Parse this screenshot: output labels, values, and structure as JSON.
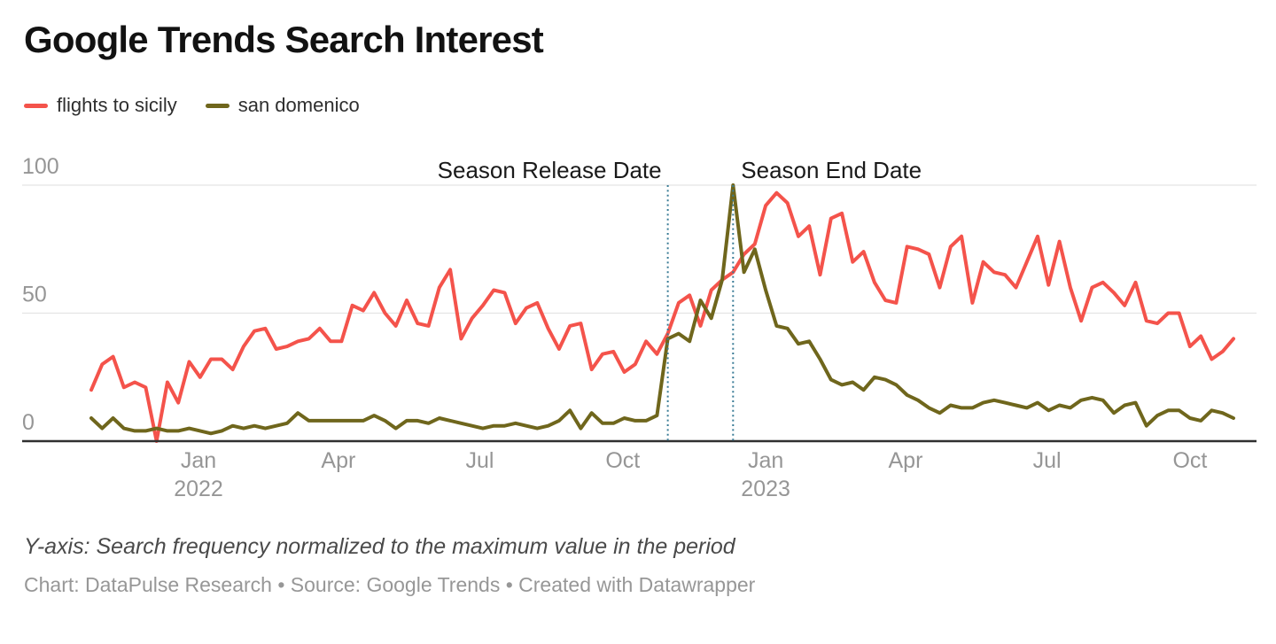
{
  "chart": {
    "title": "Google Trends Search Interest",
    "footnote": "Y-axis: Search frequency normalized to the maximum value in the period",
    "byline": "Chart: DataPulse Research • Source: Google Trends • Created with Datawrapper"
  },
  "chart_data": {
    "type": "line",
    "title": "Google Trends Search Interest",
    "x_start": "2021-10-24",
    "x_end": "2023-10-29",
    "interval": "weekly",
    "n_points": 106,
    "ylim": [
      0,
      100
    ],
    "yticks": [
      0,
      50,
      100
    ],
    "grid": true,
    "legend_position": "top-left",
    "series": [
      {
        "name": "flights to sicily",
        "color": "#f4534b",
        "values": [
          20,
          30,
          33,
          21,
          23,
          21,
          0,
          23,
          15,
          31,
          25,
          32,
          32,
          28,
          37,
          43,
          44,
          36,
          37,
          39,
          40,
          44,
          39,
          39,
          53,
          51,
          58,
          50,
          45,
          55,
          46,
          45,
          60,
          67,
          40,
          48,
          53,
          59,
          58,
          46,
          52,
          54,
          44,
          36,
          45,
          46,
          28,
          34,
          35,
          27,
          30,
          39,
          34,
          42,
          54,
          57,
          45,
          59,
          63,
          66,
          73,
          77,
          92,
          97,
          93,
          80,
          84,
          65,
          87,
          89,
          70,
          74,
          62,
          55,
          54,
          76,
          75,
          73,
          60,
          76,
          80,
          54,
          70,
          66,
          65,
          60,
          70,
          80,
          61,
          78,
          60,
          47,
          60,
          62,
          58,
          53,
          62,
          47,
          46,
          50,
          50,
          37,
          41,
          32,
          35,
          40
        ]
      },
      {
        "name": "san domenico",
        "color": "#6f661c",
        "values": [
          9,
          5,
          9,
          5,
          4,
          4,
          5,
          4,
          4,
          5,
          4,
          3,
          4,
          6,
          5,
          6,
          5,
          6,
          7,
          11,
          8,
          8,
          8,
          8,
          8,
          8,
          10,
          8,
          5,
          8,
          8,
          7,
          9,
          8,
          7,
          6,
          5,
          6,
          6,
          7,
          6,
          5,
          6,
          8,
          12,
          5,
          11,
          7,
          7,
          9,
          8,
          8,
          10,
          40,
          42,
          39,
          55,
          48,
          63,
          100,
          66,
          75,
          59,
          45,
          44,
          38,
          39,
          32,
          24,
          22,
          23,
          20,
          25,
          24,
          22,
          18,
          16,
          13,
          11,
          14,
          13,
          13,
          15,
          16,
          15,
          14,
          13,
          15,
          12,
          14,
          13,
          16,
          17,
          16,
          11,
          14,
          15,
          6,
          10,
          12,
          12,
          9,
          8,
          12,
          11,
          9
        ]
      }
    ],
    "xticks": [
      {
        "label": "Jan",
        "year": "2022",
        "date": "2022-01-01"
      },
      {
        "label": "Apr",
        "year": "",
        "date": "2022-04-01"
      },
      {
        "label": "Jul",
        "year": "",
        "date": "2022-07-01"
      },
      {
        "label": "Oct",
        "year": "",
        "date": "2022-10-01"
      },
      {
        "label": "Jan",
        "year": "2023",
        "date": "2023-01-01"
      },
      {
        "label": "Apr",
        "year": "",
        "date": "2023-04-01"
      },
      {
        "label": "Jul",
        "year": "",
        "date": "2023-07-01"
      },
      {
        "label": "Oct",
        "year": "",
        "date": "2023-10-01"
      }
    ],
    "annotations": [
      {
        "label": "Season Release Date",
        "date": "2022-10-30",
        "text_side": "left"
      },
      {
        "label": "Season End Date",
        "date": "2022-12-11",
        "text_side": "right"
      }
    ],
    "styles": {
      "grid_color": "#e4e4e4",
      "baseline_color": "#2f2f2f",
      "tick_label_color": "#969696",
      "annotation_line_color": "#3a7c96",
      "annotation_text_color": "#1a1a1a",
      "line_width": 4
    }
  }
}
